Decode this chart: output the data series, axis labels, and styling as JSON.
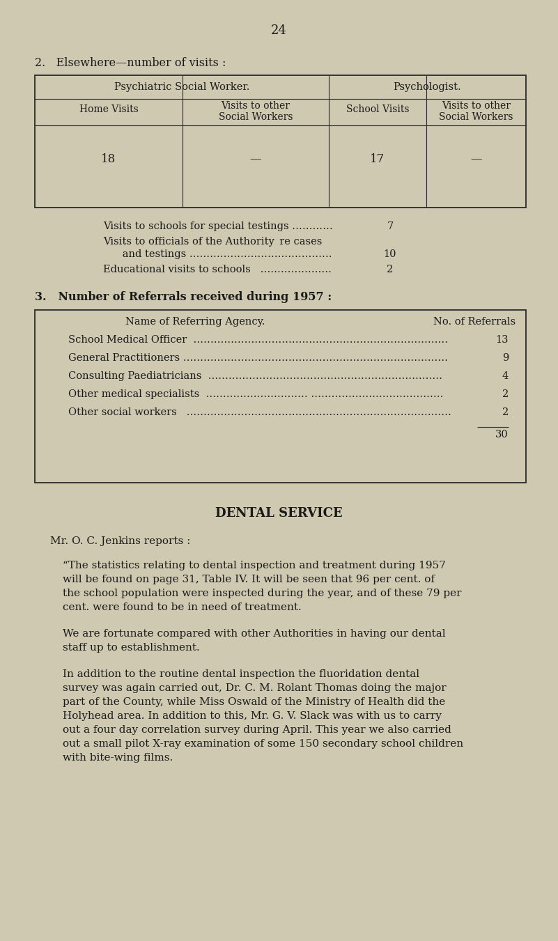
{
  "bg_color": "#cec9b0",
  "text_color": "#1a1a1a",
  "page_number": "24",
  "section2_heading": "2.   Elsewhere—number of visits :",
  "t1_psw_header": "Psychiatric Social Worker.",
  "t1_psy_header": "Psychologist.",
  "t1_col1": "Home Visits",
  "t1_col2a": "Visits to other",
  "t1_col2b": "Social Workers",
  "t1_col3": "School Visits",
  "t1_col4a": "Visits to other",
  "t1_col4b": "Social Workers",
  "t1_row": [
    "18",
    "—",
    "17",
    "—"
  ],
  "extra_line1": "Visits to schools for special testings …………",
  "extra_val1": "7",
  "extra_line2a": "Visits to officials of the Authority  re cases",
  "extra_line2b": "      and testings ……………………………………",
  "extra_val2": "10",
  "extra_line3": "Educational visits to schools   …………………",
  "extra_val3": "2",
  "section3_heading": "3.   Number of Referrals received during 1957 :",
  "t2_header1": "Name of Referring Agency.",
  "t2_header2": "No. of Referrals",
  "t2_rows": [
    [
      "School Medical Officer  …………………………………………………………………",
      "13"
    ],
    [
      "General Practitioners ……………………………………………………………………",
      "9"
    ],
    [
      "Consulting Paediatricians  ……………………………………………………………",
      "4"
    ],
    [
      "Other medical specialists  ………………………… …………………………………",
      "2"
    ],
    [
      "Other social workers   ……………………………………………………………………",
      "2"
    ]
  ],
  "t2_total": "30",
  "dental_heading": "DENTAL SERVICE",
  "dental_reporter": "Mr. O. C. Jenkins reports :",
  "dental_para1": "“The statistics relating to dental inspection and treatment during 1957 will be found on page 31, Table IV.  It will be seen that 96 per cent. of the school population were inspected during the year, and of these 79 per cent. were found to be in need of treatment.",
  "dental_para2": "We are fortunate compared with other Authorities in having our dental staff up to establishment.",
  "dental_para3": "In addition to the routine dental inspection the fluoridation dental survey was again carried out, Dr. C. M. Rolant Thomas doing the major part of the County, while Miss Oswald of the Ministry of Health did the Holyhead area.  In addition to this, Mr. G. V. Slack was with us to carry out a four day correlation survey during April. This year we also carried out a small pilot X-ray examination of some 150 secondary school children with bite-wing films."
}
